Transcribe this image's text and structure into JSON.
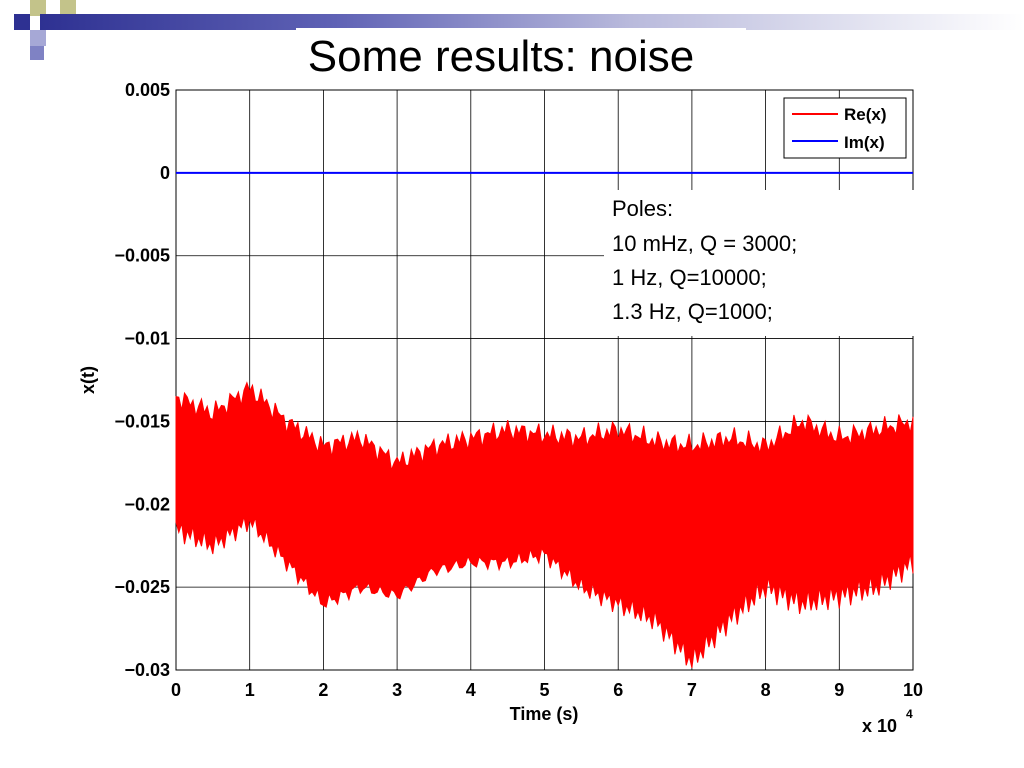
{
  "slide": {
    "title": "Some results: noise",
    "accent_color": "#2e3192"
  },
  "annotation": {
    "lines": [
      "Poles:",
      "10 mHz, Q = 3000;",
      "1 Hz, Q=10000;",
      "1.3 Hz, Q=1000;"
    ]
  },
  "chart_data": {
    "type": "line",
    "title": "",
    "xlabel": "Time (s)",
    "ylabel": "x(t)",
    "x_multiplier_label": "x 10",
    "x_multiplier_exponent": "4",
    "xlim": [
      0,
      100000
    ],
    "ylim": [
      -0.03,
      0.005
    ],
    "x_ticks": [
      0,
      10000,
      20000,
      30000,
      40000,
      50000,
      60000,
      70000,
      80000,
      90000,
      100000
    ],
    "x_tick_labels": [
      "0",
      "1",
      "2",
      "3",
      "4",
      "5",
      "6",
      "7",
      "8",
      "9",
      "10"
    ],
    "y_ticks": [
      0.005,
      0,
      -0.005,
      -0.01,
      -0.015,
      -0.02,
      -0.025,
      -0.03
    ],
    "y_tick_labels": [
      "0.005",
      "0",
      "−0.005",
      "−0.01",
      "−0.015",
      "−0.02",
      "−0.025",
      "−0.03"
    ],
    "grid": true,
    "legend_position": "top-right",
    "series": [
      {
        "name": "Re(x)",
        "color": "#ff0000",
        "style": "filled envelope (dense oscillation)",
        "x": [
          0,
          5000,
          10000,
          15000,
          20000,
          25000,
          30000,
          35000,
          40000,
          45000,
          50000,
          55000,
          60000,
          65000,
          70000,
          75000,
          80000,
          85000,
          90000,
          95000,
          100000
        ],
        "upper": [
          -0.0135,
          -0.0145,
          -0.013,
          -0.015,
          -0.0165,
          -0.016,
          -0.0175,
          -0.0165,
          -0.016,
          -0.0155,
          -0.0158,
          -0.016,
          -0.0155,
          -0.0162,
          -0.0165,
          -0.016,
          -0.0165,
          -0.015,
          -0.016,
          -0.0155,
          -0.015
        ],
        "lower": [
          -0.0215,
          -0.0225,
          -0.021,
          -0.0235,
          -0.026,
          -0.025,
          -0.0255,
          -0.024,
          -0.0235,
          -0.0235,
          -0.023,
          -0.025,
          -0.026,
          -0.027,
          -0.0295,
          -0.027,
          -0.025,
          -0.026,
          -0.0255,
          -0.025,
          -0.0235
        ]
      },
      {
        "name": "Im(x)",
        "color": "#0000ff",
        "x": [
          0,
          100000
        ],
        "values": [
          0,
          0
        ]
      }
    ]
  }
}
